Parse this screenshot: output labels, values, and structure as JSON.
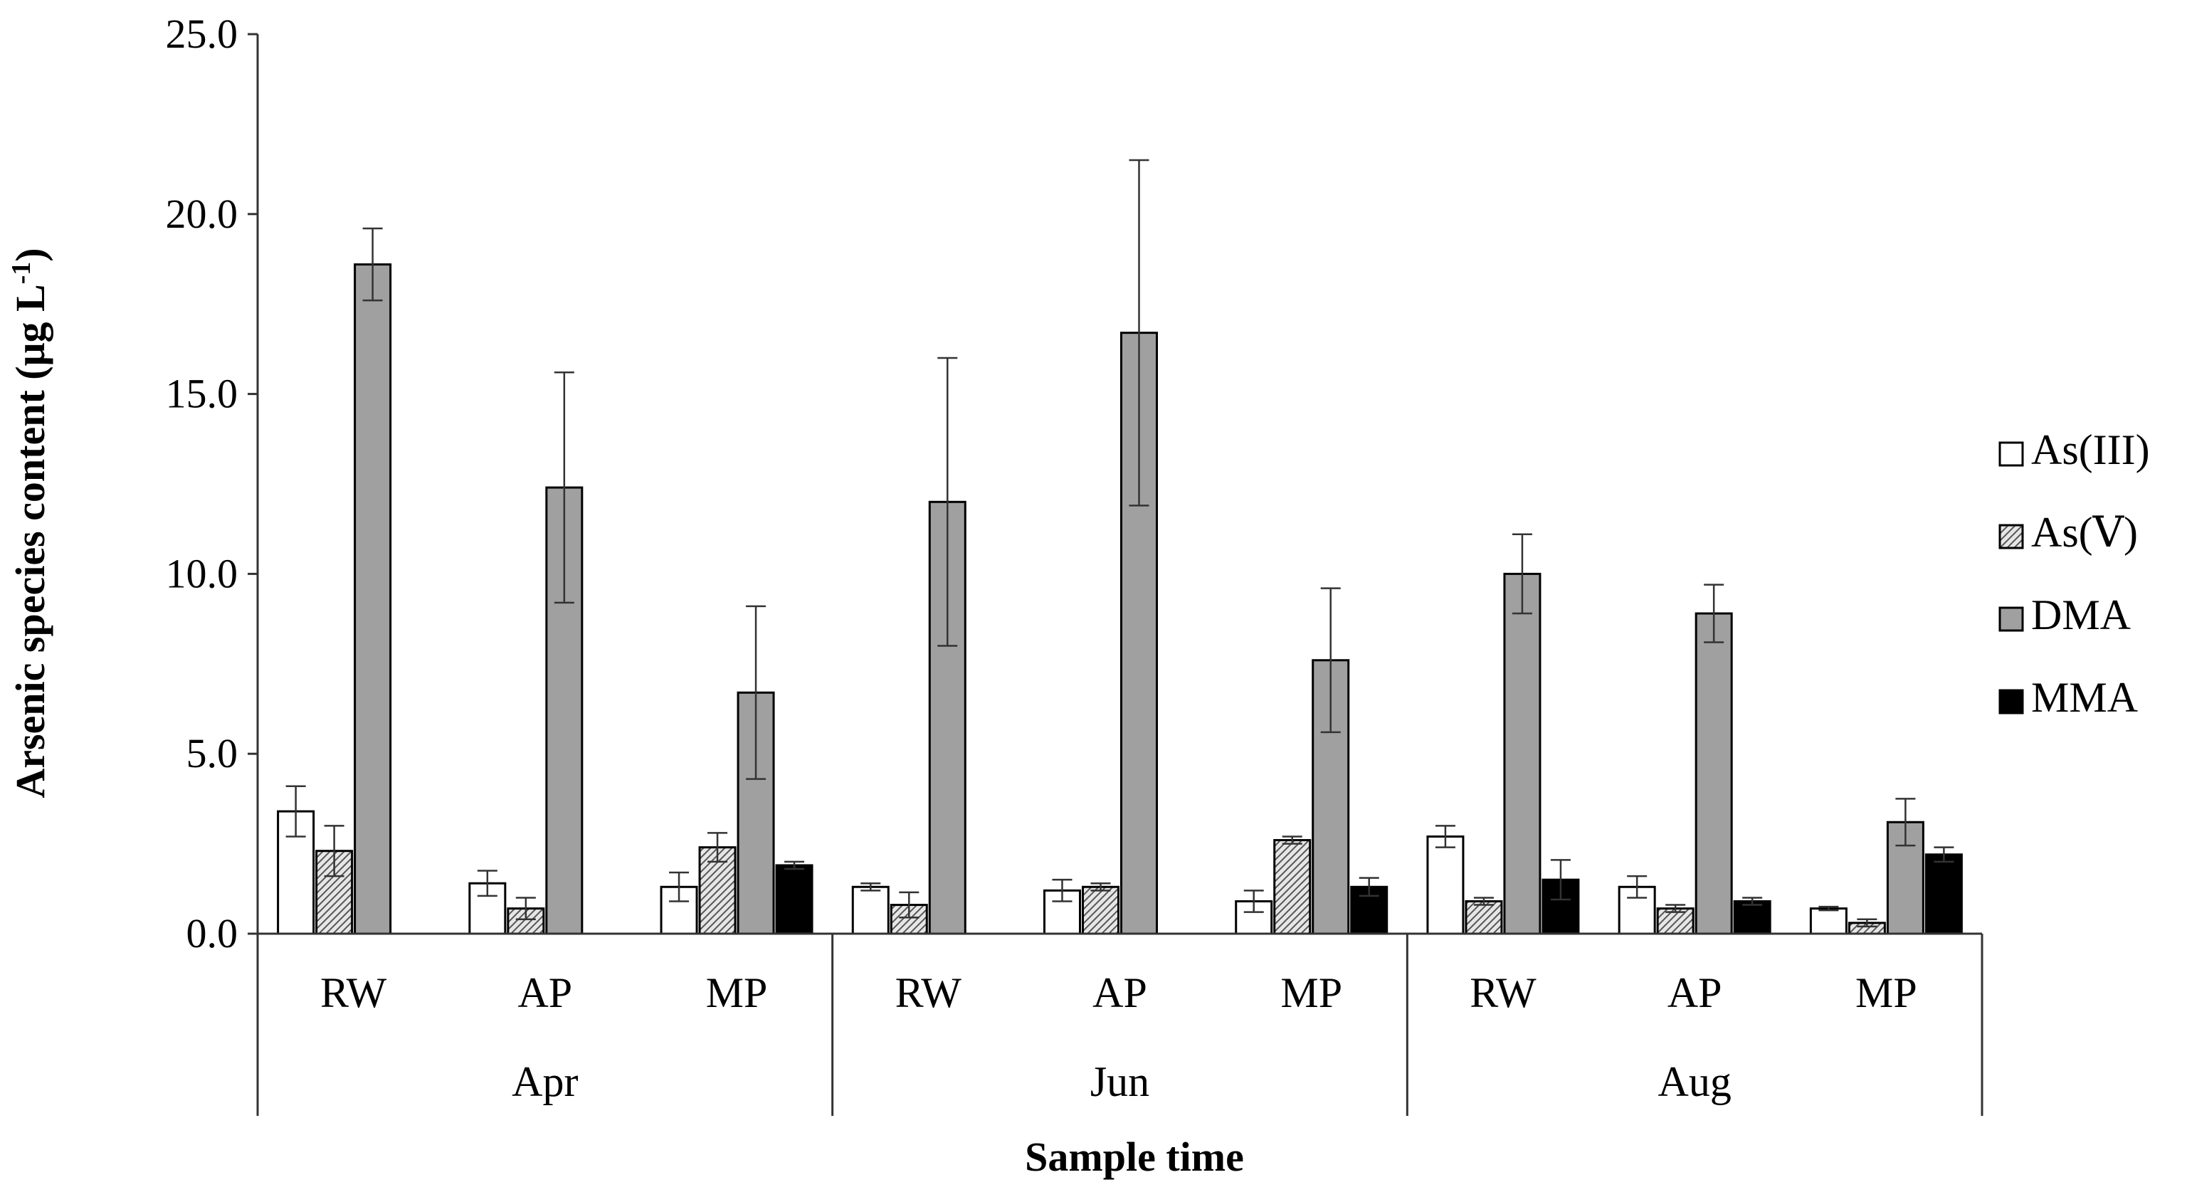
{
  "chart_data": {
    "type": "bar",
    "title": "",
    "ylabel": "Arsenic species content (μg L",
    "ylabel_superscript": "-1",
    "ylabel_close": ")",
    "xlabel": "Sample time",
    "ylim": [
      0,
      25
    ],
    "yticks": [
      "0.0",
      "5.0",
      "10.0",
      "15.0",
      "20.0",
      "25.0"
    ],
    "groups": [
      {
        "label": "Apr",
        "categories": [
          "RW",
          "AP",
          "MP"
        ]
      },
      {
        "label": "Jun",
        "categories": [
          "RW",
          "AP",
          "MP"
        ]
      },
      {
        "label": "Aug",
        "categories": [
          "RW",
          "AP",
          "MP"
        ]
      }
    ],
    "legend_position": "right",
    "series": [
      {
        "name": "As(III)",
        "fill": "#ffffff",
        "pattern": "none",
        "values": [
          3.4,
          1.4,
          1.3,
          1.3,
          1.2,
          0.9,
          2.7,
          1.3,
          0.7
        ],
        "errors": [
          0.7,
          0.35,
          0.4,
          0.1,
          0.3,
          0.3,
          0.3,
          0.3,
          0.05
        ]
      },
      {
        "name": "As(Ⅴ)",
        "fill": "#d0d0d0",
        "pattern": "hatch",
        "values": [
          2.3,
          0.7,
          2.4,
          0.8,
          1.3,
          2.6,
          0.9,
          0.7,
          0.3
        ],
        "errors": [
          0.7,
          0.3,
          0.4,
          0.35,
          0.1,
          0.1,
          0.1,
          0.1,
          0.1
        ]
      },
      {
        "name": "DMA",
        "fill": "#a0a0a0",
        "pattern": "none",
        "values": [
          18.6,
          12.4,
          6.7,
          12.0,
          16.7,
          7.6,
          10.0,
          8.9,
          3.1
        ],
        "errors": [
          1.0,
          3.2,
          2.4,
          4.0,
          4.8,
          2.0,
          1.1,
          0.8,
          0.65
        ]
      },
      {
        "name": "MMA",
        "fill": "#000000",
        "pattern": "none",
        "values": [
          0.0,
          0.0,
          1.9,
          0.0,
          0.0,
          1.3,
          1.5,
          0.9,
          2.2
        ],
        "errors": [
          0.0,
          0.0,
          0.1,
          0.0,
          0.0,
          0.25,
          0.55,
          0.1,
          0.2
        ]
      }
    ]
  }
}
